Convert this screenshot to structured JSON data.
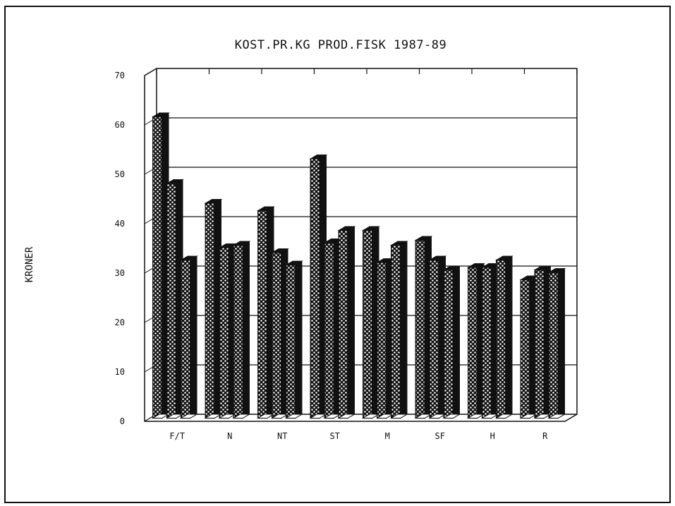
{
  "chart_data": {
    "type": "bar",
    "title": "KOST.PR.KG PROD.FISK 1987-89",
    "xlabel": "",
    "ylabel": "KRONER",
    "categories": [
      "F/T",
      "N",
      "NT",
      "ST",
      "M",
      "SF",
      "H",
      "R"
    ],
    "series": [
      {
        "values": [
          61,
          43.5,
          42,
          52.5,
          38,
          36,
          30.5,
          28
        ]
      },
      {
        "values": [
          47.5,
          34.5,
          33.5,
          35.5,
          31.5,
          32,
          30.5,
          30
        ]
      },
      {
        "values": [
          32,
          35,
          31,
          38,
          35,
          30,
          32,
          29.5
        ]
      }
    ],
    "ylim": [
      0,
      70
    ],
    "yticks": [
      0,
      10,
      20,
      30,
      40,
      50,
      60,
      70
    ],
    "grid": true,
    "legend": "none",
    "bar_color": "#111111"
  }
}
